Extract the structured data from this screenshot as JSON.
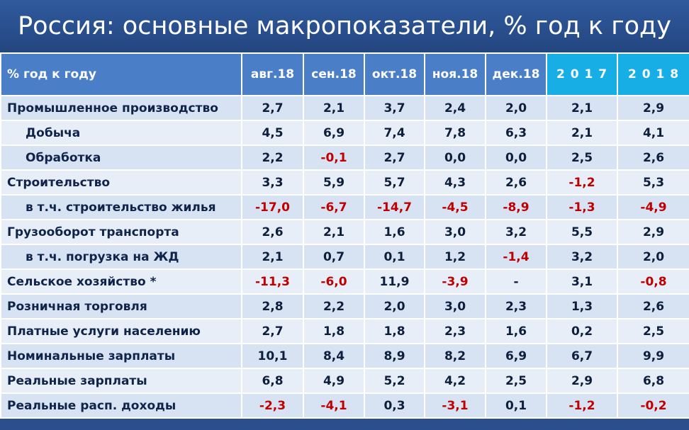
{
  "header": {
    "title": "Россия: основные макропоказатели, % год к году"
  },
  "table": {
    "columns": [
      "% год к году",
      "авг.18",
      "сен.18",
      "окт.18",
      "ноя.18",
      "дек.18",
      "2 0 1 7",
      "2 0 1 8"
    ],
    "rows": [
      [
        "Промышленное производство",
        "2,7",
        "2,1",
        "3,7",
        "2,4",
        "2,0",
        "2,1",
        "2,9"
      ],
      [
        "Добыча",
        "4,5",
        "6,9",
        "7,4",
        "7,8",
        "6,3",
        "2,1",
        "4,1"
      ],
      [
        "Обработка",
        "2,2",
        "-0,1",
        "2,7",
        "0,0",
        "0,0",
        "2,5",
        "2,6"
      ],
      [
        "Строительство",
        "3,3",
        "5,9",
        "5,7",
        "4,3",
        "2,6",
        "-1,2",
        "5,3"
      ],
      [
        "в т.ч. строительство жилья",
        "-17,0",
        "-6,7",
        "-14,7",
        "-4,5",
        "-8,9",
        "-1,3",
        "-4,9"
      ],
      [
        "Грузооборот транспорта",
        "2,6",
        "2,1",
        "1,6",
        "3,0",
        "3,2",
        "5,5",
        "2,9"
      ],
      [
        "в т.ч. погрузка на ЖД",
        "2,1",
        "0,7",
        "0,1",
        "1,2",
        "-1,4",
        "3,2",
        "2,0"
      ],
      [
        "Сельское хозяйство *",
        "-11,3",
        "-6,0",
        "11,9",
        "-3,9",
        "-",
        "3,1",
        "-0,8"
      ],
      [
        "Розничная торговля",
        "2,8",
        "2,2",
        "2,0",
        "3,0",
        "2,3",
        "1,3",
        "2,6"
      ],
      [
        "Платные услуги населению",
        "2,7",
        "1,8",
        "1,8",
        "2,3",
        "1,6",
        "0,2",
        "2,5"
      ],
      [
        "Номинальные зарплаты",
        "10,1",
        "8,4",
        "8,9",
        "8,2",
        "6,9",
        "6,7",
        "9,9"
      ],
      [
        "Реальные зарплаты",
        "6,8",
        "4,9",
        "5,2",
        "4,2",
        "2,5",
        "2,9",
        "6,8"
      ],
      [
        "Реальные расп. доходы",
        "-2,3",
        "-4,1",
        "0,3",
        "-3,1",
        "0,1",
        "-1,2",
        "-0,2"
      ]
    ]
  }
}
